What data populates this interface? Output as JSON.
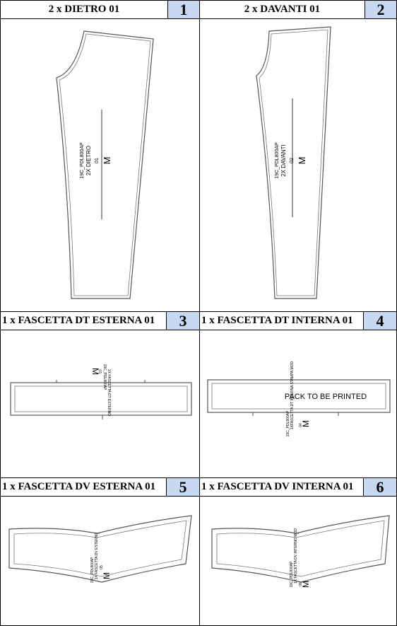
{
  "panels": [
    {
      "label": "2 x DIETRO 01",
      "number": "1",
      "piece_text": [
        "19C_PDL800AP",
        "2X DIETRO",
        "01"
      ],
      "size": "M"
    },
    {
      "label": "2 x DAVANTI 01",
      "number": "2",
      "piece_text": [
        "19C_PDL800AP",
        "2X DAVANTI",
        "02"
      ],
      "size": "M"
    },
    {
      "label": "1 x FASCETTA DT ESTERNA 01",
      "number": "3",
      "piece_text": [
        "19C_PDL800AP",
        "1X FASCETTA DT ESTERNO",
        "03"
      ],
      "size": "M"
    },
    {
      "label": "1 x FASCETTA DT INTERNA 01",
      "number": "4",
      "piece_text": [
        "19C_PDL800AP",
        "1XFASCETTA DT INTERNA STAMPA MOD",
        "04"
      ],
      "size": "M",
      "note": "PACK TO BE PRINTED"
    },
    {
      "label": "1 x FASCETTA DV ESTERNA 01",
      "number": "5",
      "piece_text": [
        "19C_PDL800AP",
        "1X FASCETTA DV ESTERNO",
        "05"
      ],
      "size": "M"
    },
    {
      "label": "1 x FASCETTA DV INTERNA 01",
      "number": "6",
      "piece_text": [
        "19C_PDL800AP",
        "1X FASCETTA DV INTERNO MOD",
        "06"
      ],
      "size": "M"
    }
  ]
}
